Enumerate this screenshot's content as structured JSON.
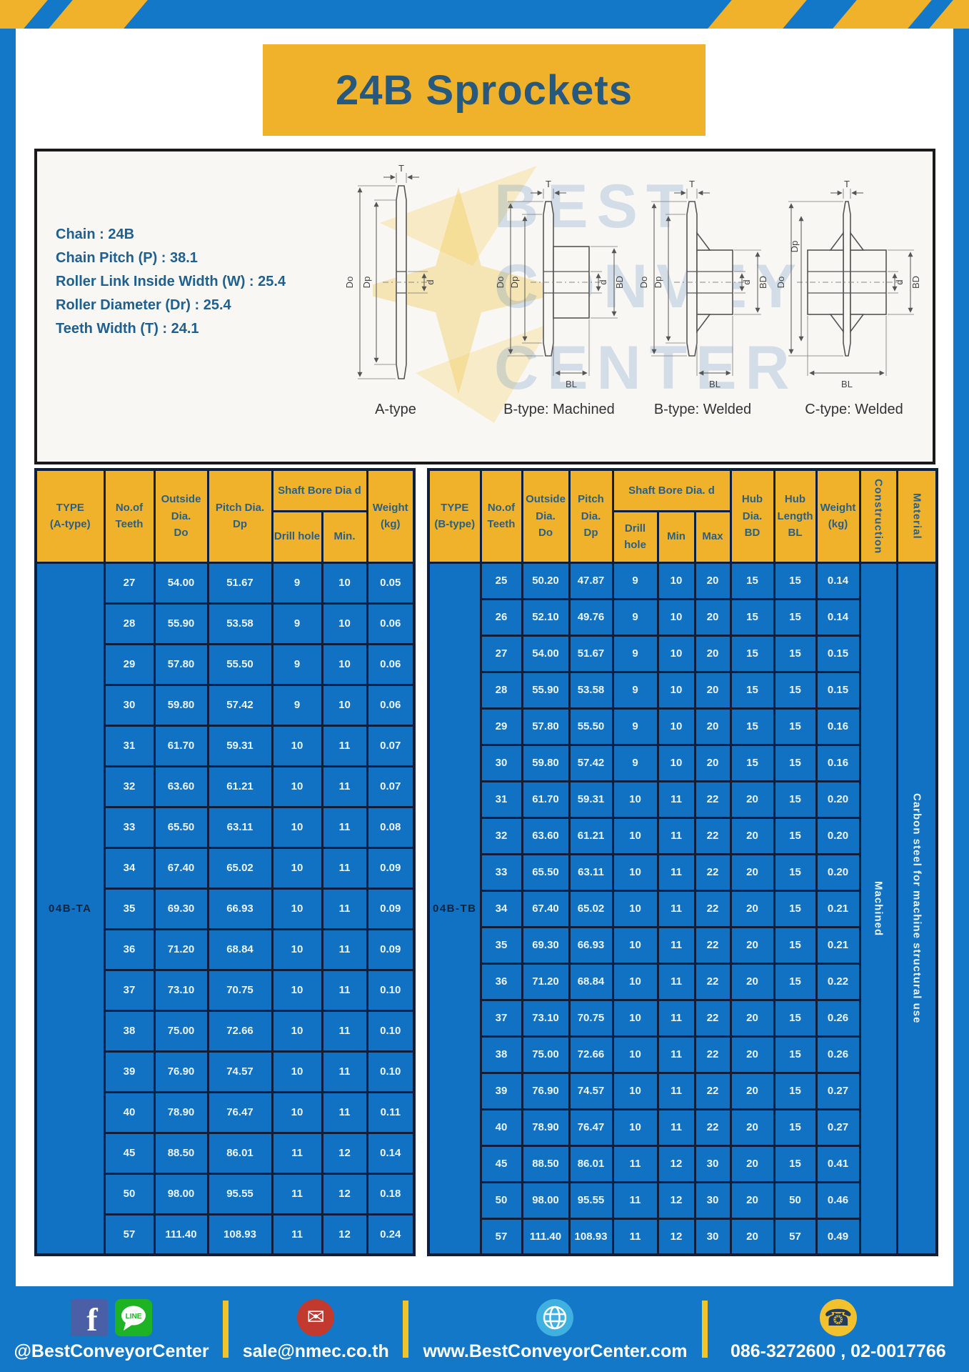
{
  "header": {
    "title": "24B Sprockets"
  },
  "specs": {
    "lines": [
      "Chain : 24B",
      "Chain Pitch (P) : 38.1",
      "Roller Link Inside Width (W) : 25.4",
      "Roller Diameter (Dr) : 25.4",
      "Teeth Width (T) : 24.1"
    ]
  },
  "diagrams": {
    "labels": [
      "A-type",
      "B-type: Machined",
      "B-type: Welded",
      "C-type: Welded"
    ],
    "dims": {
      "T": "T",
      "Do": "Do",
      "Dp": "Dp",
      "d": "d",
      "BD": "BD",
      "BL": "BL"
    }
  },
  "watermark": {
    "line1": "BEST",
    "line2": "CONVEYOR",
    "line3": "CENTER"
  },
  "table_a": {
    "headers": {
      "type": "TYPE\n(A-type)",
      "teeth": "No.of\nTeeth",
      "outside": "Outside\nDia.\nDo",
      "pitch": "Pitch Dia.\nDp",
      "shaft": "Shaft Bore Dia d",
      "drill": "Drill hole",
      "min": "Min.",
      "weight": "Weight\n(kg)"
    },
    "type_value": "04B-TA",
    "rows": [
      [
        "27",
        "54.00",
        "51.67",
        "9",
        "10",
        "0.05"
      ],
      [
        "28",
        "55.90",
        "53.58",
        "9",
        "10",
        "0.06"
      ],
      [
        "29",
        "57.80",
        "55.50",
        "9",
        "10",
        "0.06"
      ],
      [
        "30",
        "59.80",
        "57.42",
        "9",
        "10",
        "0.06"
      ],
      [
        "31",
        "61.70",
        "59.31",
        "10",
        "11",
        "0.07"
      ],
      [
        "32",
        "63.60",
        "61.21",
        "10",
        "11",
        "0.07"
      ],
      [
        "33",
        "65.50",
        "63.11",
        "10",
        "11",
        "0.08"
      ],
      [
        "34",
        "67.40",
        "65.02",
        "10",
        "11",
        "0.09"
      ],
      [
        "35",
        "69.30",
        "66.93",
        "10",
        "11",
        "0.09"
      ],
      [
        "36",
        "71.20",
        "68.84",
        "10",
        "11",
        "0.09"
      ],
      [
        "37",
        "73.10",
        "70.75",
        "10",
        "11",
        "0.10"
      ],
      [
        "38",
        "75.00",
        "72.66",
        "10",
        "11",
        "0.10"
      ],
      [
        "39",
        "76.90",
        "74.57",
        "10",
        "11",
        "0.10"
      ],
      [
        "40",
        "78.90",
        "76.47",
        "10",
        "11",
        "0.11"
      ],
      [
        "45",
        "88.50",
        "86.01",
        "11",
        "12",
        "0.14"
      ],
      [
        "50",
        "98.00",
        "95.55",
        "11",
        "12",
        "0.18"
      ],
      [
        "57",
        "111.40",
        "108.93",
        "11",
        "12",
        "0.24"
      ]
    ]
  },
  "table_b": {
    "headers": {
      "type": "TYPE\n(B-type)",
      "teeth": "No.of\nTeeth",
      "outside": "Outside\nDia.\nDo",
      "pitch": "Pitch\nDia.\nDp",
      "shaft": "Shaft Bore Dia. d",
      "drill": "Drill hole",
      "min": "Min",
      "max": "Max",
      "hub_dia": "Hub\nDia.\nBD",
      "hub_len": "Hub\nLength\nBL",
      "weight": "Weight\n(kg)",
      "construction": "Construction",
      "material": "Material"
    },
    "type_value": "04B-TB",
    "construction_value": "Machined",
    "material_value": "Carbon steel for machine structural use",
    "rows": [
      [
        "25",
        "50.20",
        "47.87",
        "9",
        "10",
        "20",
        "15",
        "15",
        "0.14"
      ],
      [
        "26",
        "52.10",
        "49.76",
        "9",
        "10",
        "20",
        "15",
        "15",
        "0.14"
      ],
      [
        "27",
        "54.00",
        "51.67",
        "9",
        "10",
        "20",
        "15",
        "15",
        "0.15"
      ],
      [
        "28",
        "55.90",
        "53.58",
        "9",
        "10",
        "20",
        "15",
        "15",
        "0.15"
      ],
      [
        "29",
        "57.80",
        "55.50",
        "9",
        "10",
        "20",
        "15",
        "15",
        "0.16"
      ],
      [
        "30",
        "59.80",
        "57.42",
        "9",
        "10",
        "20",
        "15",
        "15",
        "0.16"
      ],
      [
        "31",
        "61.70",
        "59.31",
        "10",
        "11",
        "22",
        "20",
        "15",
        "0.20"
      ],
      [
        "32",
        "63.60",
        "61.21",
        "10",
        "11",
        "22",
        "20",
        "15",
        "0.20"
      ],
      [
        "33",
        "65.50",
        "63.11",
        "10",
        "11",
        "22",
        "20",
        "15",
        "0.20"
      ],
      [
        "34",
        "67.40",
        "65.02",
        "10",
        "11",
        "22",
        "20",
        "15",
        "0.21"
      ],
      [
        "35",
        "69.30",
        "66.93",
        "10",
        "11",
        "22",
        "20",
        "15",
        "0.21"
      ],
      [
        "36",
        "71.20",
        "68.84",
        "10",
        "11",
        "22",
        "20",
        "15",
        "0.22"
      ],
      [
        "37",
        "73.10",
        "70.75",
        "10",
        "11",
        "22",
        "20",
        "15",
        "0.26"
      ],
      [
        "38",
        "75.00",
        "72.66",
        "10",
        "11",
        "22",
        "20",
        "15",
        "0.26"
      ],
      [
        "39",
        "76.90",
        "74.57",
        "10",
        "11",
        "22",
        "20",
        "15",
        "0.27"
      ],
      [
        "40",
        "78.90",
        "76.47",
        "10",
        "11",
        "22",
        "20",
        "15",
        "0.27"
      ],
      [
        "45",
        "88.50",
        "86.01",
        "11",
        "12",
        "30",
        "20",
        "15",
        "0.41"
      ],
      [
        "50",
        "98.00",
        "95.55",
        "11",
        "12",
        "30",
        "20",
        "50",
        "0.46"
      ],
      [
        "57",
        "111.40",
        "108.93",
        "11",
        "12",
        "30",
        "20",
        "57",
        "0.49"
      ]
    ]
  },
  "footer": {
    "segments": [
      {
        "label": "@BestConveyorCenter",
        "icons": [
          "facebook-icon",
          "line-icon"
        ]
      },
      {
        "label": "sale@nmec.co.th",
        "icons": [
          "email-icon"
        ]
      },
      {
        "label": "www.BestConveyorCenter.com",
        "icons": [
          "globe-icon"
        ]
      },
      {
        "label": "086-3272600 , 02-0017766",
        "icons": [
          "phone-icon"
        ]
      }
    ],
    "line_badge": "LINE",
    "email_glyph": "✉",
    "phone_glyph": "☎",
    "facebook_glyph": "f"
  },
  "colors": {
    "frame_blue": "#1478c8",
    "table_body_blue": "#1171c3",
    "accent_yellow": "#f0b22a",
    "grid_dark": "#0d1f3c",
    "heading_blue": "#2b5f86"
  }
}
